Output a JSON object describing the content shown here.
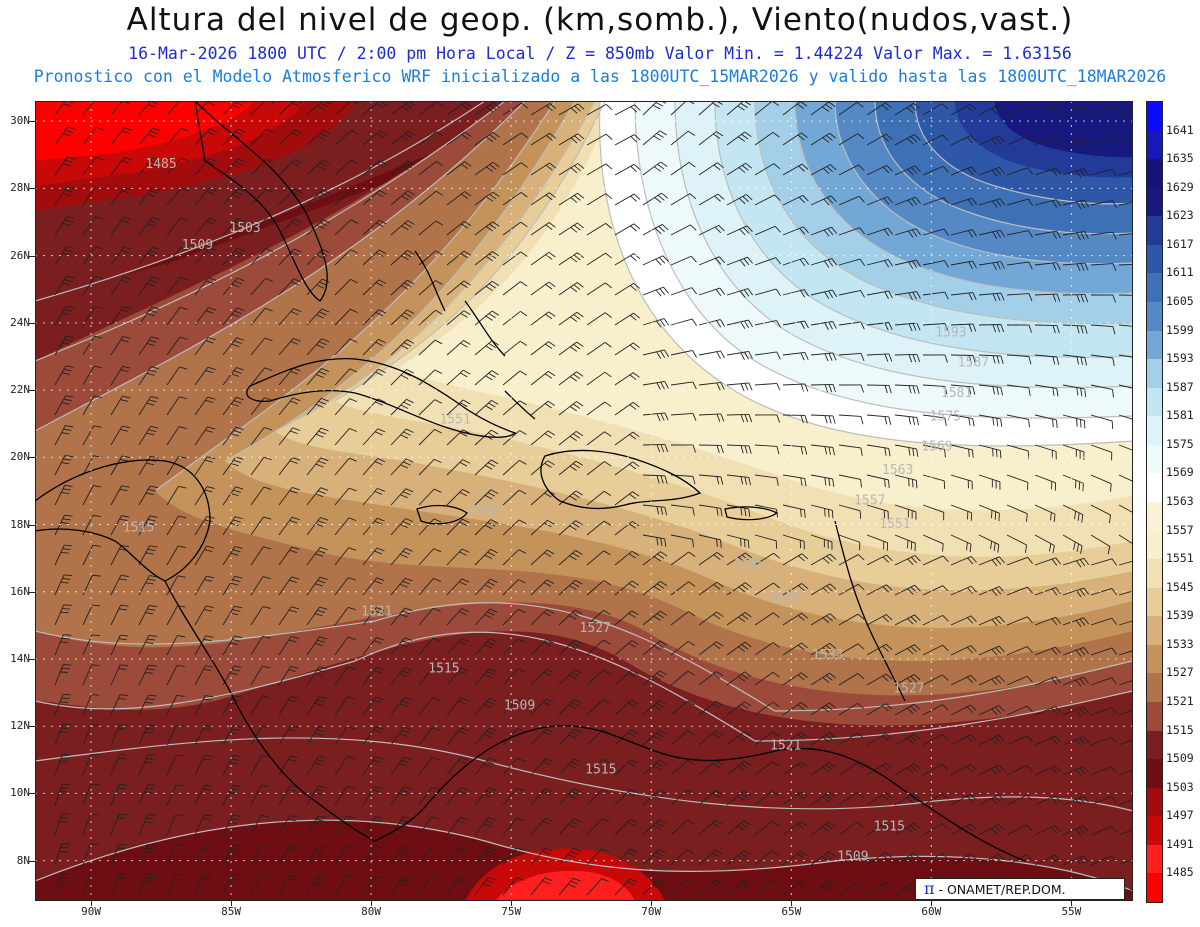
{
  "header": {
    "title": "Altura del nivel de geop. (km,somb.), Viento(nudos,vast.)",
    "subtitle_valid": "16-Mar-2026  1800 UTC / 2:00 pm Hora Local / Z = 850mb    Valor Min. = 1.44224  Valor Max. = 1.63156",
    "subtitle_model": "Pronostico con el Modelo Atmosferico WRF inicializado a las 1800UTC_15MAR2026 y valido hasta las  1800UTC_18MAR2026"
  },
  "map": {
    "lat_labels": [
      "30N",
      "28N",
      "26N",
      "24N",
      "22N",
      "20N",
      "18N",
      "16N",
      "14N",
      "12N",
      "10N",
      "8N"
    ],
    "lon_labels": [
      "90W",
      "85W",
      "80W",
      "75W",
      "70W",
      "65W",
      "60W",
      "55W"
    ],
    "contour_labels": [
      {
        "text": "1485",
        "lon": -87.5,
        "lat": 28.6
      },
      {
        "text": "1503",
        "lon": -84.5,
        "lat": 26.7
      },
      {
        "text": "1509",
        "lon": -86.2,
        "lat": 26.2
      },
      {
        "text": "1593",
        "lon": -59.3,
        "lat": 23.6
      },
      {
        "text": "1587",
        "lon": -58.5,
        "lat": 22.7
      },
      {
        "text": "1581",
        "lon": -59.1,
        "lat": 21.8
      },
      {
        "text": "1575",
        "lon": -59.5,
        "lat": 21.1
      },
      {
        "text": "1569",
        "lon": -59.8,
        "lat": 20.2
      },
      {
        "text": "1563",
        "lon": -61.2,
        "lat": 19.5
      },
      {
        "text": "1557",
        "lon": -62.2,
        "lat": 18.6
      },
      {
        "text": "1551",
        "lon": -61.3,
        "lat": 17.9
      },
      {
        "text": "1545",
        "lon": -66.5,
        "lat": 16.7
      },
      {
        "text": "1539",
        "lon": -65.2,
        "lat": 15.7
      },
      {
        "text": "1533",
        "lon": -63.7,
        "lat": 14.0
      },
      {
        "text": "1527",
        "lon": -60.8,
        "lat": 13.0
      },
      {
        "text": "1521",
        "lon": -65.2,
        "lat": 11.3
      },
      {
        "text": "1515",
        "lon": -61.5,
        "lat": 8.9
      },
      {
        "text": "1509",
        "lon": -62.8,
        "lat": 8.0
      },
      {
        "text": "1521",
        "lon": -79.8,
        "lat": 15.3
      },
      {
        "text": "1515",
        "lon": -77.4,
        "lat": 13.6
      },
      {
        "text": "1509",
        "lon": -74.7,
        "lat": 12.5
      },
      {
        "text": "1515",
        "lon": -71.8,
        "lat": 10.6
      },
      {
        "text": "1515",
        "lon": -88.3,
        "lat": 17.8
      },
      {
        "text": "1527",
        "lon": -72.0,
        "lat": 14.8
      },
      {
        "text": "1545",
        "lon": -76.0,
        "lat": 18.3
      },
      {
        "text": "1551",
        "lon": -77.0,
        "lat": 21.0
      }
    ]
  },
  "colorbar": {
    "levels": [
      "1641",
      "1635",
      "1629",
      "1623",
      "1617",
      "1611",
      "1605",
      "1599",
      "1593",
      "1587",
      "1581",
      "1575",
      "1569",
      "1563",
      "1557",
      "1551",
      "1545",
      "1539",
      "1533",
      "1527",
      "1521",
      "1515",
      "1509",
      "1503",
      "1497",
      "1491",
      "1485"
    ],
    "colors": [
      "#0b0bff",
      "#1818b8",
      "#17137a",
      "#18197f",
      "#223a98",
      "#2f57a8",
      "#3d70b5",
      "#5589c5",
      "#73a8d6",
      "#a3d0e8",
      "#c4e6f2",
      "#ddf3f8",
      "#eef9fb",
      "#ffffff",
      "#faf1d6",
      "#f8efcc",
      "#f1e0b4",
      "#e7cd97",
      "#d7b07a",
      "#c4935c",
      "#b0734a",
      "#9c4a3a",
      "#7a1e20",
      "#6e0e12",
      "#a30c0c",
      "#c90808",
      "#ff1f1f",
      "#ff0000"
    ]
  },
  "credit": {
    "symbol": "π",
    "text": " - ONAMET/REP.DOM."
  }
}
